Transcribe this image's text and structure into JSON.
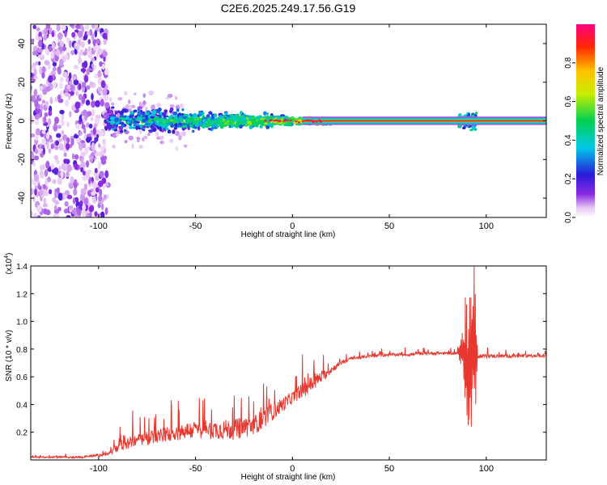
{
  "figure_title": "C2E6.2025.249.17.56.G19",
  "chart_data": [
    {
      "type": "heatmap",
      "title": "C2E6.2025.249.17.56.G19",
      "xlabel": "Height of straight line (km)",
      "ylabel": "Frequency (Hz)",
      "xlim": [
        -135,
        131
      ],
      "ylim": [
        -50,
        50
      ],
      "xticks": [
        -100,
        -50,
        0,
        50,
        100
      ],
      "yticks": [
        -40,
        -20,
        0,
        20,
        40
      ],
      "colorbar": {
        "label": "Normalized spectral amplitude",
        "range": [
          0,
          1
        ],
        "ticks": [
          "0.0",
          "0.2",
          "0.4",
          "0.6",
          "0.8"
        ]
      },
      "features": [
        {
          "name": "broadband noise",
          "x_range": [
            -135,
            -95
          ],
          "freq_range": [
            -50,
            50
          ]
        },
        {
          "name": "scattered signal",
          "x_range": [
            -95,
            0
          ],
          "freq_center": 0,
          "freq_halfwidth": [
            8,
            3
          ]
        },
        {
          "name": "coherent tone",
          "x_range": [
            0,
            131
          ],
          "freq": 0
        },
        {
          "name": "burst",
          "x_range": [
            86,
            95
          ],
          "freq_halfwidth": 6
        }
      ]
    },
    {
      "type": "line",
      "xlabel": "Height of straight line (km)",
      "ylabel": "SNR (10 * v/v)",
      "y_scale_label": "(x10",
      "y_scale_exponent": "4",
      "xlim": [
        -135,
        131
      ],
      "ylim": [
        0,
        1.4
      ],
      "xticks": [
        -100,
        -50,
        0,
        50,
        100
      ],
      "yticks": [
        "0.2",
        "0.4",
        "0.6",
        "0.8",
        "1.0",
        "1.2",
        "1.4"
      ],
      "series": [
        {
          "name": "SNR",
          "color": "#e8372e",
          "envelope_x": [
            -135,
            -110,
            -95,
            -90,
            -80,
            -70,
            -60,
            -50,
            -40,
            -30,
            -20,
            -10,
            0,
            10,
            20,
            25,
            30,
            40,
            50,
            60,
            70,
            80,
            85,
            88,
            90,
            92,
            94,
            96,
            100,
            110,
            120,
            131
          ],
          "envelope_y": [
            0.02,
            0.02,
            0.04,
            0.1,
            0.14,
            0.17,
            0.2,
            0.22,
            0.22,
            0.22,
            0.25,
            0.35,
            0.45,
            0.55,
            0.65,
            0.7,
            0.73,
            0.75,
            0.76,
            0.76,
            0.77,
            0.77,
            0.77,
            0.78,
            0.65,
            0.75,
            0.8,
            0.75,
            0.75,
            0.75,
            0.75,
            0.75
          ],
          "noise_x": [
            -135,
            -95,
            -90,
            -60,
            -30,
            -15,
            0,
            10,
            20,
            25,
            30,
            85,
            88,
            90,
            94,
            96,
            131
          ],
          "noise_amp": [
            0.01,
            0.02,
            0.08,
            0.12,
            0.15,
            0.14,
            0.09,
            0.12,
            0.05,
            0.03,
            0.02,
            0.02,
            0.2,
            0.5,
            0.5,
            0.03,
            0.02
          ]
        }
      ]
    }
  ]
}
